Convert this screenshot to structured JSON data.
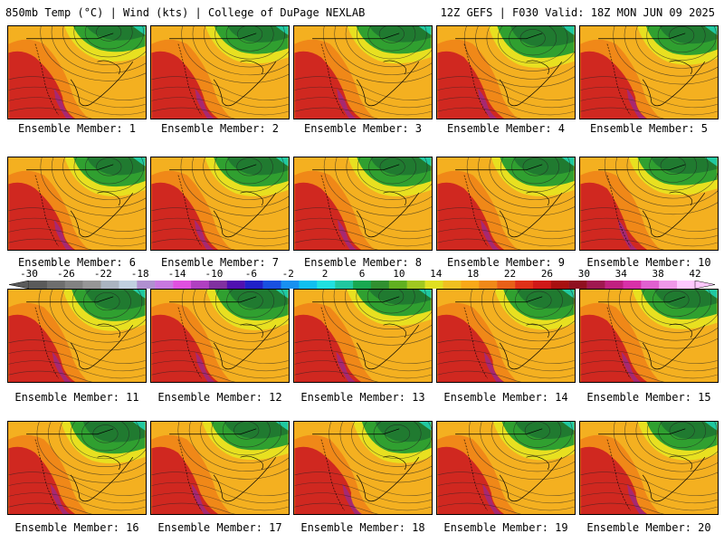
{
  "header": {
    "left": "850mb Temp (°C) | Wind (kts) | College of DuPage NEXLAB",
    "right": "12Z GEFS | F030 Valid: 18Z MON JUN 09 2025"
  },
  "members": [
    "Ensemble Member: 1",
    "Ensemble Member: 2",
    "Ensemble Member: 3",
    "Ensemble Member: 4",
    "Ensemble Member: 5",
    "Ensemble Member: 6",
    "Ensemble Member: 7",
    "Ensemble Member: 8",
    "Ensemble Member: 9",
    "Ensemble Member: 10",
    "Ensemble Member: 11",
    "Ensemble Member: 12",
    "Ensemble Member: 13",
    "Ensemble Member: 14",
    "Ensemble Member: 15",
    "Ensemble Member: 16",
    "Ensemble Member: 17",
    "Ensemble Member: 18",
    "Ensemble Member: 19",
    "Ensemble Member: 20"
  ],
  "colorbar": {
    "ticks": [
      "-30",
      "-26",
      "-22",
      "-18",
      "-14",
      "-10",
      "-6",
      "-2",
      "2",
      "6",
      "10",
      "14",
      "18",
      "22",
      "26",
      "30",
      "34",
      "38",
      "42"
    ],
    "colors": [
      "#5a5a5a",
      "#6e6e6e",
      "#828282",
      "#969696",
      "#aab4c0",
      "#c0d0e0",
      "#b090d0",
      "#c878e0",
      "#e050e0",
      "#b040c0",
      "#8030a0",
      "#5010b0",
      "#2020c8",
      "#1850e0",
      "#1890f0",
      "#10c0f0",
      "#20e0e0",
      "#20c8a0",
      "#18a850",
      "#309030",
      "#60b020",
      "#a0c820",
      "#e0e020",
      "#f0c020",
      "#f8a818",
      "#f08818",
      "#e86018",
      "#e03018",
      "#d01818",
      "#a81010",
      "#901020",
      "#a01850",
      "#c02080",
      "#d830a8",
      "#e060d0",
      "#f098e8",
      "#ffc8ff"
    ]
  },
  "colors": {
    "hot": "#d02820",
    "warm": "#f08818",
    "mild": "#f4b020",
    "yellow": "#e8e020",
    "green": "#30a030",
    "dkgreen": "#207a30",
    "teal": "#20c8a0",
    "magenta": "#a02880"
  }
}
